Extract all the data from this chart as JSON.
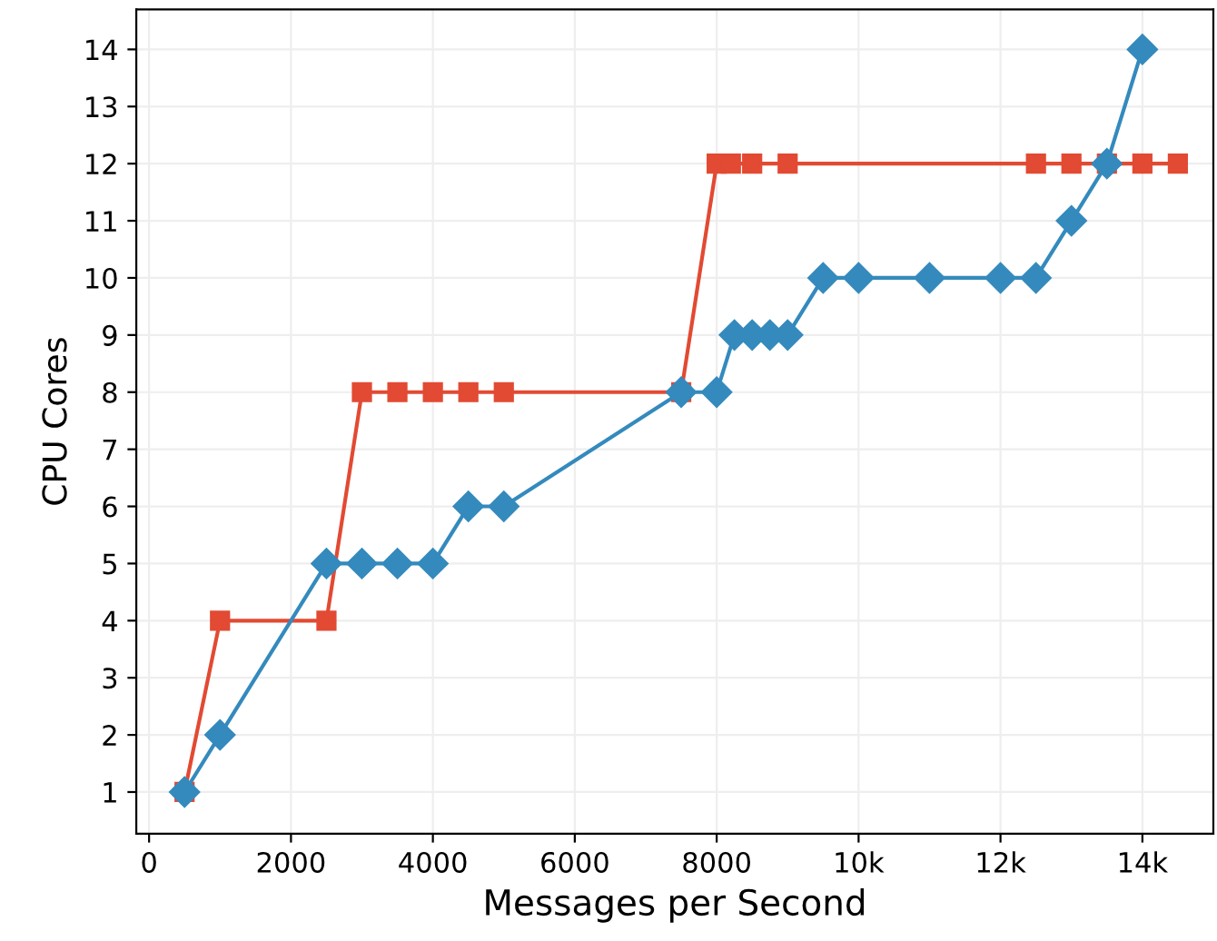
{
  "chart_data": {
    "type": "line",
    "xlabel": "Messages per Second",
    "ylabel": "CPU Cores",
    "xlim": [
      -180,
      15000
    ],
    "ylim": [
      0.27,
      14.7
    ],
    "xticks": [
      0,
      2000,
      4000,
      6000,
      8000,
      {
        "value": 10000,
        "label": "10k"
      },
      {
        "value": 12000,
        "label": "12k"
      },
      {
        "value": 14000,
        "label": "14k"
      }
    ],
    "yticks": [
      1,
      2,
      3,
      4,
      5,
      6,
      7,
      8,
      9,
      10,
      11,
      12,
      13,
      14
    ],
    "grid": true,
    "series": [
      {
        "color": "#e24a33",
        "marker": "square",
        "x": [
          500,
          1000,
          2500,
          3000,
          3500,
          4000,
          4500,
          5000,
          7500,
          8000,
          8200,
          8500,
          9000,
          12500,
          13000,
          13500,
          14000,
          14500
        ],
        "values": [
          1,
          4,
          4,
          8,
          8,
          8,
          8,
          8,
          8,
          12,
          12,
          12,
          12,
          12,
          12,
          12,
          12,
          12
        ]
      },
      {
        "color": "#348abd",
        "marker": "diamond",
        "x": [
          500,
          1000,
          2500,
          3000,
          3500,
          4000,
          4500,
          5000,
          7500,
          8000,
          8250,
          8500,
          8750,
          9000,
          9500,
          10000,
          11000,
          12000,
          12500,
          13000,
          13500,
          14000
        ],
        "values": [
          1,
          2,
          5,
          5,
          5,
          5,
          6,
          6,
          8,
          8,
          9,
          9,
          9,
          9,
          10,
          10,
          10,
          10,
          10,
          11,
          12,
          14
        ]
      }
    ]
  }
}
